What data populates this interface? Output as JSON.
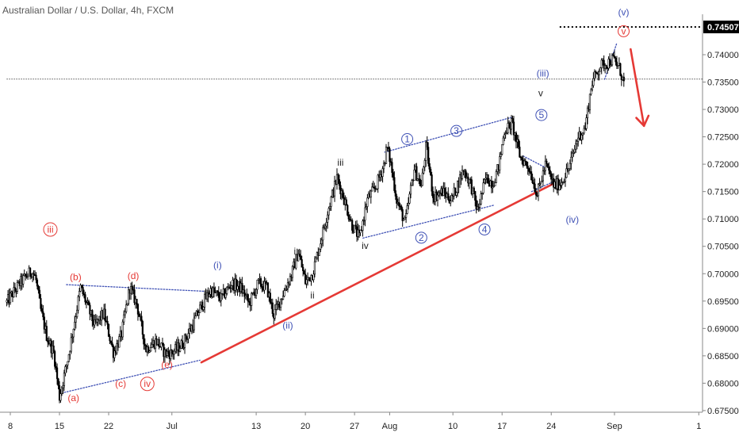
{
  "chart_data": {
    "type": "candlestick",
    "title": "Australian Dollar / U.S. Dollar, 4h, FXCM",
    "symbol": "Australian Dollar / U.S. Dollar",
    "interval": "4h",
    "source": "FXCM",
    "price_axis": {
      "position": "right",
      "ylim": [
        0.6747,
        0.7455
      ],
      "ticks": [
        "0.74000",
        "0.73500",
        "0.73000",
        "0.72500",
        "0.72000",
        "0.71500",
        "0.71000",
        "0.70500",
        "0.70000",
        "0.69500",
        "0.69000",
        "0.68500",
        "0.68000",
        "0.67500"
      ],
      "tick_values": [
        0.74,
        0.735,
        0.73,
        0.725,
        0.72,
        0.715,
        0.71,
        0.705,
        0.7,
        0.695,
        0.69,
        0.685,
        0.68,
        0.675
      ],
      "highlight_label": "0.74507",
      "highlight_value": 0.74507
    },
    "time_axis": {
      "labels": [
        "8",
        "15",
        "22",
        "Jul",
        "13",
        "20",
        "27",
        "Aug",
        "10",
        "17",
        "24",
        "Sep",
        "1"
      ],
      "days_from_jun8": [
        0,
        7,
        14,
        23,
        35,
        42,
        49,
        54,
        63,
        70,
        77,
        86,
        98
      ]
    },
    "price_path": {
      "days_from_jun8": [
        -0.5,
        1.5,
        3,
        3.6,
        4.3,
        5.2,
        6.2,
        7,
        8.2,
        10,
        12,
        13.3,
        14.7,
        15.8,
        17,
        18,
        19.3,
        20.8,
        22,
        23,
        24.5,
        25.8,
        27.2,
        28.5,
        30,
        31.5,
        32.8,
        34,
        35.3,
        36.5,
        37.5,
        38.7,
        40,
        41,
        42,
        43,
        44,
        45.3,
        46.5,
        47.3,
        48.6,
        49.7,
        50.8,
        52,
        53.2,
        53.6,
        54.1,
        55,
        56.2,
        57.5,
        58.5,
        59.2,
        60.2,
        61.5,
        62.8,
        64.5,
        65.5,
        66.5,
        67.7,
        68.7,
        69.6,
        70.3,
        71.4,
        72.6,
        73.8,
        75,
        76.2,
        77.4,
        78.3,
        79.6,
        80.8,
        81.8,
        82.8,
        84,
        85,
        85.8,
        86.7,
        87.4
      ],
      "close": [
        0.6948,
        0.6985,
        0.7005,
        0.6993,
        0.6935,
        0.6885,
        0.6855,
        0.6775,
        0.6845,
        0.6975,
        0.6905,
        0.6928,
        0.6855,
        0.6888,
        0.6975,
        0.6945,
        0.6862,
        0.6878,
        0.6855,
        0.6855,
        0.6872,
        0.6902,
        0.6942,
        0.697,
        0.6955,
        0.6982,
        0.6975,
        0.6945,
        0.6983,
        0.6975,
        0.6925,
        0.696,
        0.6998,
        0.704,
        0.6985,
        0.7,
        0.705,
        0.712,
        0.7175,
        0.7145,
        0.709,
        0.7065,
        0.7135,
        0.7158,
        0.72,
        0.7232,
        0.7205,
        0.7135,
        0.7092,
        0.7192,
        0.716,
        0.7234,
        0.714,
        0.715,
        0.7135,
        0.719,
        0.7165,
        0.7115,
        0.7175,
        0.7165,
        0.72,
        0.726,
        0.7275,
        0.7212,
        0.7195,
        0.7145,
        0.72,
        0.716,
        0.7165,
        0.7195,
        0.725,
        0.7265,
        0.735,
        0.738,
        0.7385,
        0.7392,
        0.7375,
        0.7345
      ]
    },
    "trendlines": [
      {
        "name": "main support",
        "color": "#e53935",
        "points": [
          {
            "day": 27.2,
            "price": 0.6838
          },
          {
            "day": 77.4,
            "price": 0.7165
          }
        ]
      },
      {
        "name": "triangle upper",
        "color": "#3f51b5",
        "dotted": true,
        "points": [
          {
            "day": 8.0,
            "price": 0.698
          },
          {
            "day": 27.5,
            "price": 0.6968
          }
        ]
      },
      {
        "name": "triangle lower",
        "color": "#3f51b5",
        "dotted": true,
        "points": [
          {
            "day": 7.3,
            "price": 0.6782
          },
          {
            "day": 27.0,
            "price": 0.6842
          }
        ]
      },
      {
        "name": "channel upper",
        "color": "#3f51b5",
        "dotted": true,
        "points": [
          {
            "day": 53.3,
            "price": 0.7222
          },
          {
            "day": 71.5,
            "price": 0.7286
          }
        ]
      },
      {
        "name": "channel lower",
        "color": "#3f51b5",
        "dotted": true,
        "points": [
          {
            "day": 50.2,
            "price": 0.7065
          },
          {
            "day": 68.8,
            "price": 0.7125
          }
        ]
      },
      {
        "name": "wedge upper",
        "color": "#3f51b5",
        "dotted": true,
        "points": [
          {
            "day": 73.0,
            "price": 0.7215
          },
          {
            "day": 76.0,
            "price": 0.7195
          }
        ]
      },
      {
        "name": "wedge lower",
        "color": "#3f51b5",
        "dotted": true,
        "points": [
          {
            "day": 74.2,
            "price": 0.715
          },
          {
            "day": 77.3,
            "price": 0.7168
          }
        ]
      },
      {
        "name": "peak wedge",
        "color": "#3f51b5",
        "dotted": true,
        "points": [
          {
            "day": 84.6,
            "price": 0.7355
          },
          {
            "day": 86.3,
            "price": 0.742
          }
        ]
      }
    ],
    "horizontal_lines": [
      {
        "name": "resistance",
        "price": 0.74507,
        "style": "dotted-heavy",
        "from_day": 78.2
      },
      {
        "name": "current price",
        "price": 0.73555,
        "style": "dotted-thin",
        "from_day": -0.5
      }
    ],
    "projection_arrow": {
      "color": "#e53935",
      "from": {
        "day": 88.3,
        "price": 0.741
      },
      "to": {
        "day": 90.2,
        "price": 0.727
      }
    },
    "wave_labels": [
      {
        "text": "iii",
        "day": 5.7,
        "price": 0.7075,
        "color": "#e53935",
        "circled": true
      },
      {
        "text": "(b)",
        "day": 9.3,
        "price": 0.6988,
        "color": "#e53935"
      },
      {
        "text": "(d)",
        "day": 17.5,
        "price": 0.699,
        "color": "#e53935"
      },
      {
        "text": "(c)",
        "day": 15.7,
        "price": 0.6793,
        "color": "#e53935"
      },
      {
        "text": "iv",
        "day": 19.5,
        "price": 0.6793,
        "color": "#e53935",
        "circled": true
      },
      {
        "text": "(e)",
        "day": 22.3,
        "price": 0.6828,
        "color": "#e53935"
      },
      {
        "text": "(a)",
        "day": 9.0,
        "price": 0.6767,
        "color": "#e53935"
      },
      {
        "text": "(i)",
        "day": 29.5,
        "price": 0.701,
        "color": "#3f51b5"
      },
      {
        "text": "(ii)",
        "day": 39.5,
        "price": 0.69,
        "color": "#3f51b5"
      },
      {
        "text": "i",
        "day": 40.5,
        "price": 0.7035,
        "color": "#222222"
      },
      {
        "text": "ii",
        "day": 43.0,
        "price": 0.6955,
        "color": "#222222"
      },
      {
        "text": "iii",
        "day": 47.0,
        "price": 0.7197,
        "color": "#222222"
      },
      {
        "text": "iv",
        "day": 50.5,
        "price": 0.7045,
        "color": "#222222"
      },
      {
        "text": "1",
        "day": 56.5,
        "price": 0.724,
        "color": "#3f51b5",
        "circled": true
      },
      {
        "text": "2",
        "day": 58.5,
        "price": 0.706,
        "color": "#3f51b5",
        "circled": true
      },
      {
        "text": "3",
        "day": 63.5,
        "price": 0.7255,
        "color": "#3f51b5",
        "circled": true
      },
      {
        "text": "4",
        "day": 67.5,
        "price": 0.7075,
        "color": "#3f51b5",
        "circled": true
      },
      {
        "text": "5",
        "day": 75.6,
        "price": 0.7284,
        "color": "#3f51b5",
        "circled": true
      },
      {
        "text": "v",
        "day": 75.5,
        "price": 0.7324,
        "color": "#222222"
      },
      {
        "text": "(iii)",
        "day": 75.8,
        "price": 0.736,
        "color": "#3f51b5"
      },
      {
        "text": "(iv)",
        "day": 80.0,
        "price": 0.7093,
        "color": "#3f51b5"
      },
      {
        "text": "v",
        "day": 87.3,
        "price": 0.7437,
        "color": "#e53935",
        "circled": true
      },
      {
        "text": "(v)",
        "day": 87.3,
        "price": 0.7472,
        "color": "#3f51b5"
      }
    ]
  }
}
